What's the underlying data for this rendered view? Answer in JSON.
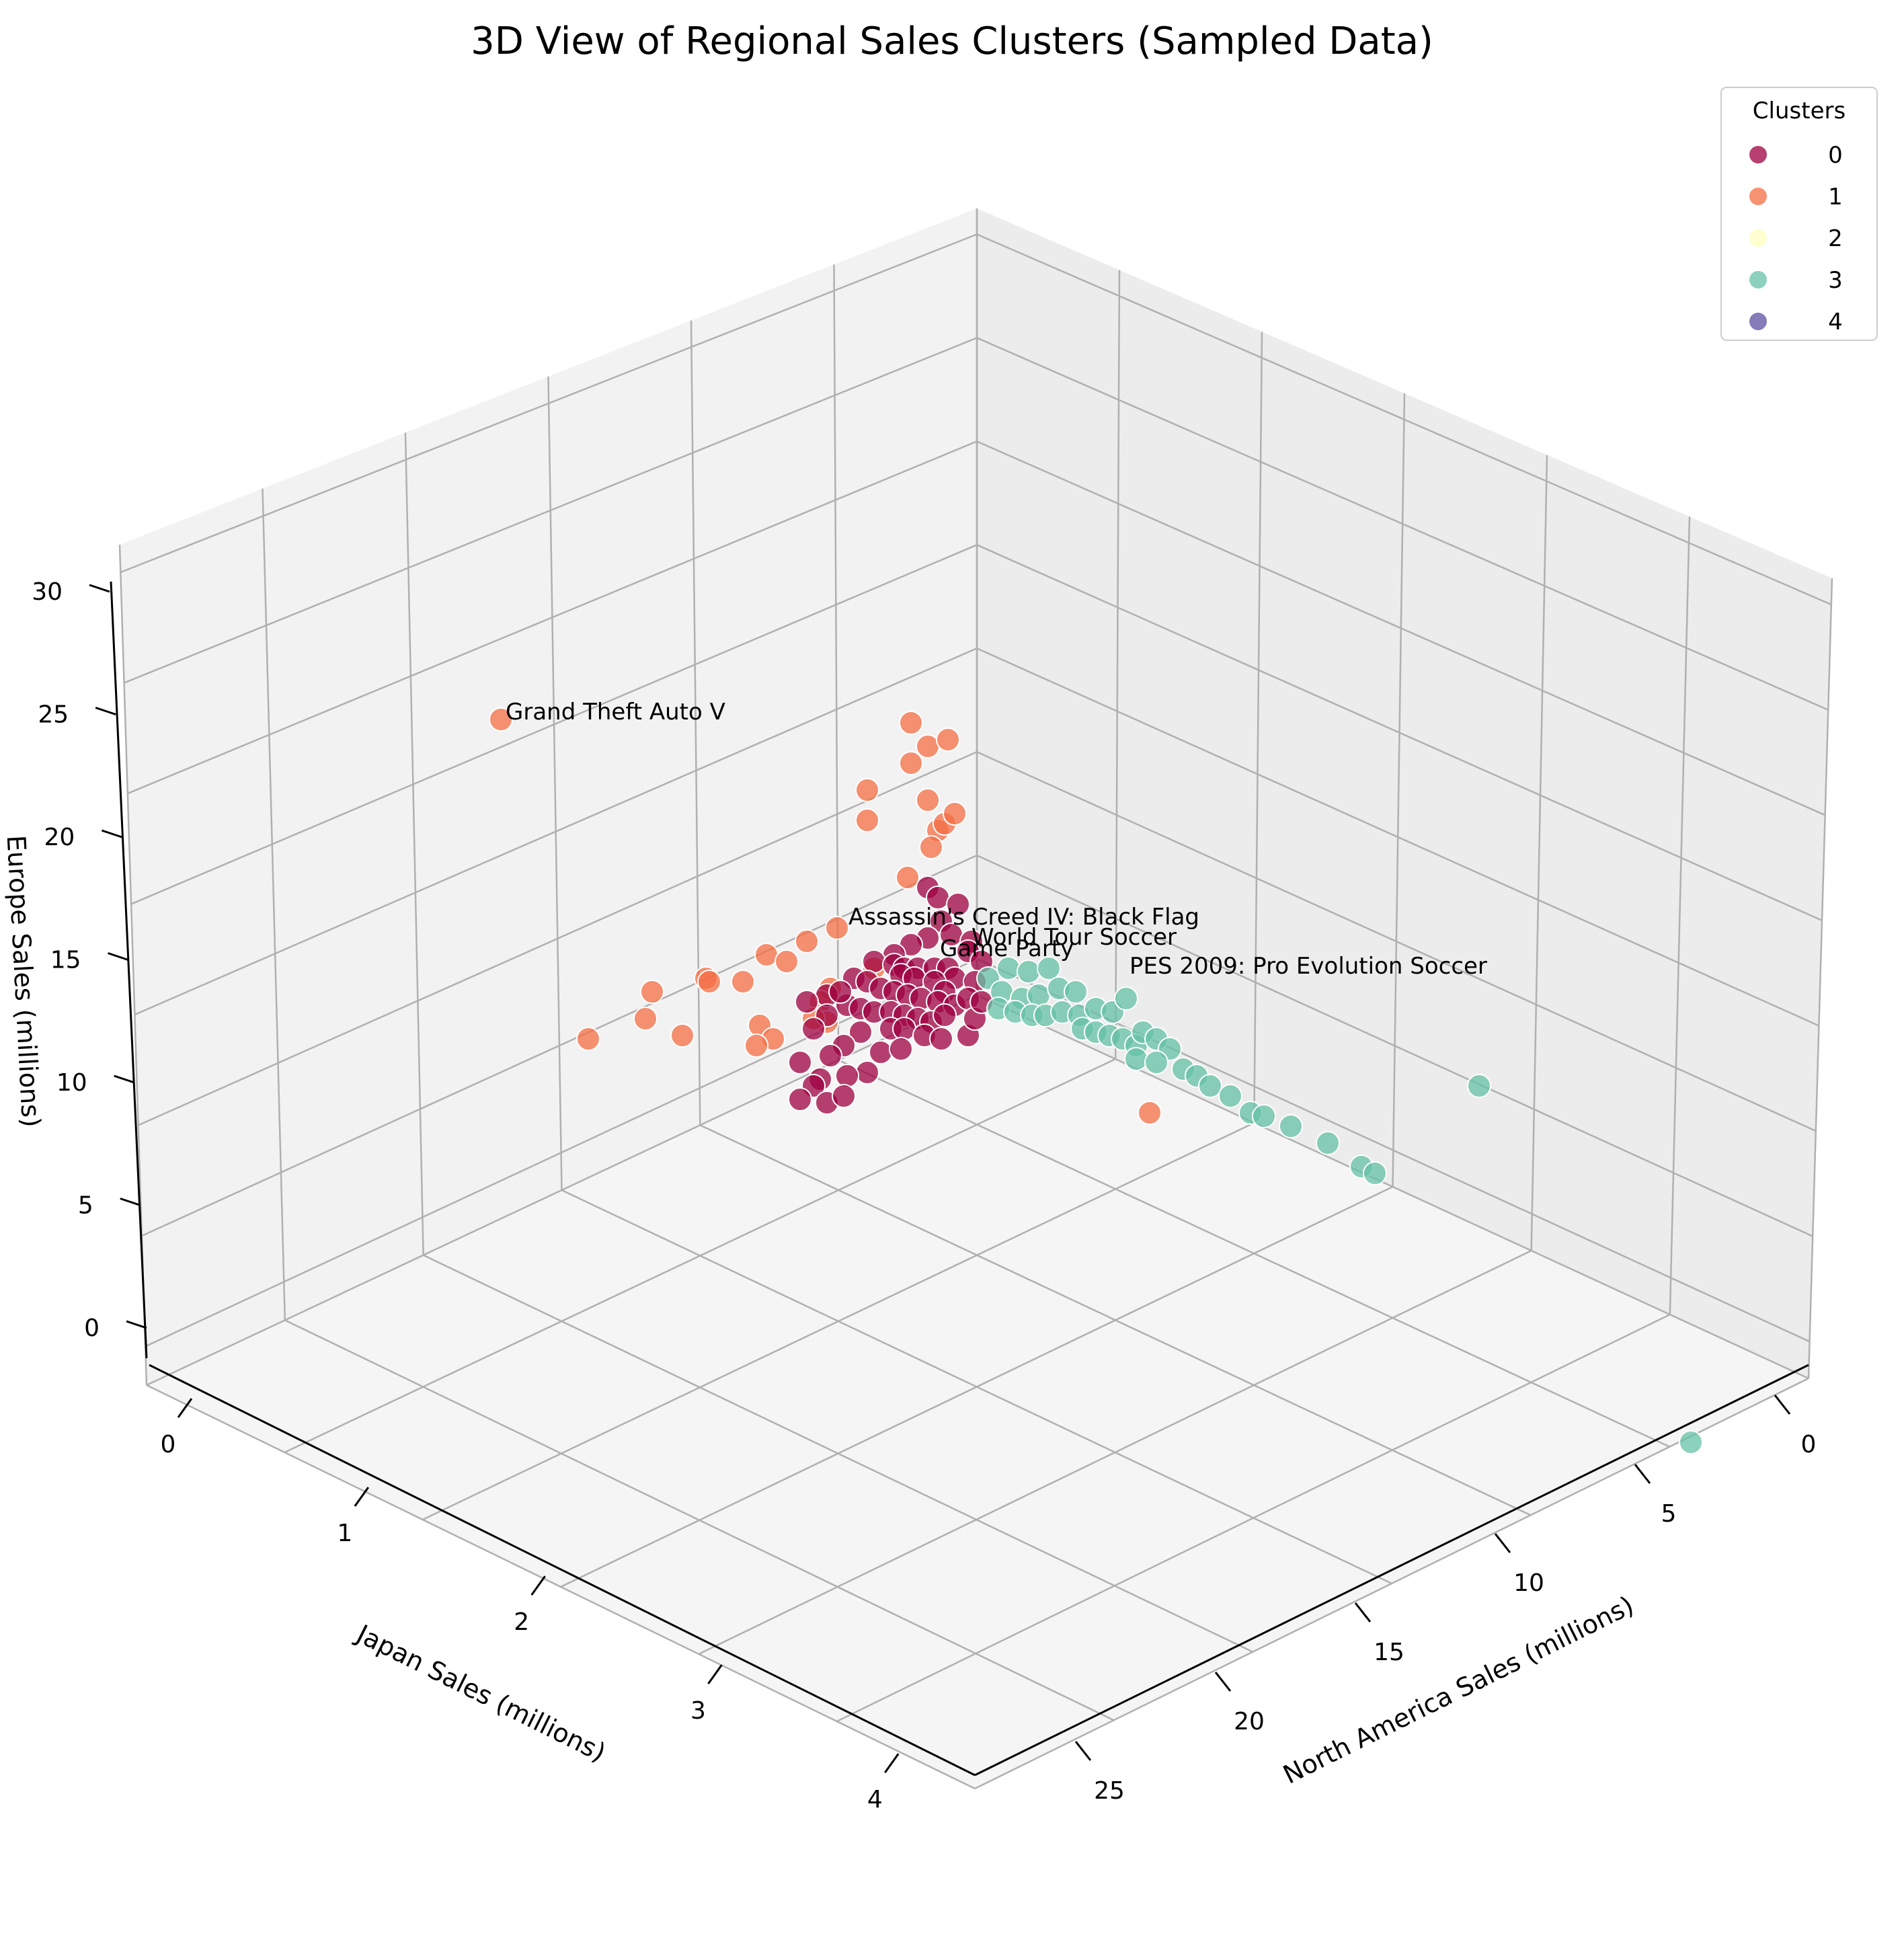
{
  "chart_data": {
    "type": "scatter",
    "title": "3D View of Regional Sales Clusters (Sampled Data)",
    "xlabel": "North America Sales (millions)",
    "ylabel": "Japan Sales (millions)",
    "zlabel": "Europe Sales (millions)",
    "x_ticks": [
      "0",
      "5",
      "10",
      "15",
      "20",
      "25"
    ],
    "y_ticks": [
      "0",
      "1",
      "2",
      "3",
      "4"
    ],
    "z_ticks": [
      "0",
      "5",
      "10",
      "15",
      "20",
      "25",
      "30"
    ],
    "grid": true,
    "legend": {
      "title": "Clusters",
      "position": "top-right",
      "entries": [
        {
          "label": "0",
          "color": "#9e0142"
        },
        {
          "label": "1",
          "color": "#f46d43"
        },
        {
          "label": "2",
          "color": "#ffffbf"
        },
        {
          "label": "3",
          "color": "#66c2a5"
        },
        {
          "label": "4",
          "color": "#5e4fa2"
        }
      ]
    },
    "annotations": [
      {
        "text": "Grand Theft Auto V"
      },
      {
        "text": "Assassin's Creed IV: Black Flag"
      },
      {
        "text": "World Tour Soccer"
      },
      {
        "text": "Game Party"
      },
      {
        "text": "PES 2009: Pro Evolution Soccer"
      }
    ]
  }
}
